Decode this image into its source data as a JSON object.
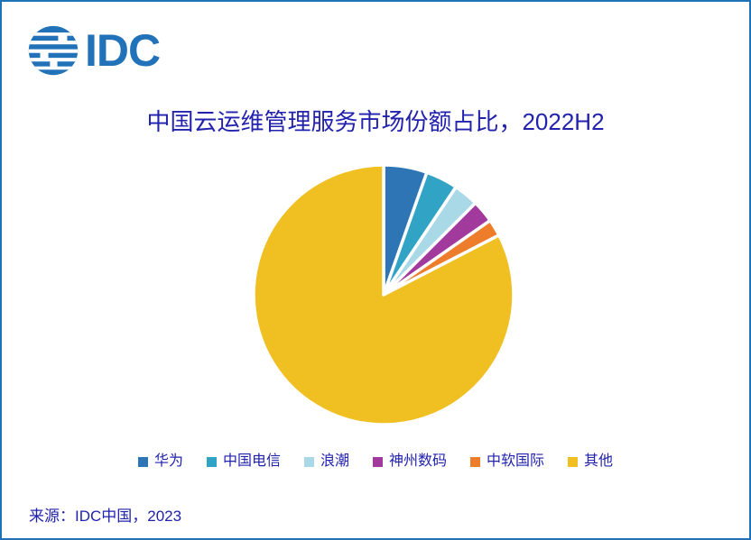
{
  "frame": {
    "background": "#FFFFFF",
    "border_color": "#1E73B8"
  },
  "logo": {
    "text": "IDC",
    "color": "#2272B9"
  },
  "title": {
    "text": "中国云运维管理服务市场份额占比，2022H2",
    "color": "#2222AD"
  },
  "chart_data": {
    "type": "pie",
    "title": "中国云运维管理服务市场份额占比，2022H2",
    "categories": [
      "华为",
      "中国电信",
      "浪潮",
      "神州数码",
      "中软国际",
      "其他"
    ],
    "values": [
      5.4,
      4.0,
      3.1,
      2.8,
      2.1,
      82.6
    ],
    "unit": "percent",
    "colors": [
      "#2E75B6",
      "#31A4C6",
      "#A9D8E6",
      "#A23A9D",
      "#ED7D2B",
      "#F0C022"
    ],
    "start_angle": "12-oclock-clockwise",
    "slice_border_color": "#FFFFFF",
    "data_labels": false,
    "legend_position": "bottom",
    "legend_text_color": "#2222AD"
  },
  "source": {
    "text": "来源：IDC中国，2023",
    "color": "#2222AD"
  }
}
